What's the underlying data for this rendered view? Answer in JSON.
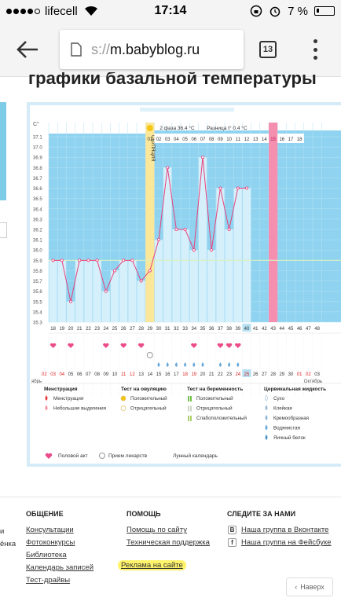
{
  "status": {
    "carrier": "lifecell",
    "time": "17:14",
    "battery": "7 %"
  },
  "browser": {
    "url_dim": "s://",
    "url_main": "m.babyblog.ru",
    "tabs_count": "13"
  },
  "heading": "графики базальной температуры",
  "chart": {
    "unit": "C°",
    "phase_text": "2 фаза 36.4 °C",
    "diff_text": "Разница t° 0.4 °C",
    "ovulation": "ОВУЛЯЦИЯ",
    "y_ticks": [
      "37.1",
      "37.0",
      "36.9",
      "36.8",
      "36.7",
      "36.6",
      "36.5",
      "36.4",
      "36.3",
      "36.2",
      "36.1",
      "36.0",
      "35.9",
      "35.8",
      "35.7",
      "35.6",
      "35.5",
      "35.4",
      "35.3"
    ],
    "cycle_days": [
      "01",
      "02",
      "03",
      "04",
      "05",
      "06",
      "07",
      "08",
      "09",
      "10",
      "11",
      "12",
      "13",
      "14",
      "15",
      "16",
      "17",
      "18"
    ],
    "highlight_day": "15",
    "bottom_days": [
      "18",
      "19",
      "20",
      "21",
      "22",
      "23",
      "24",
      "25",
      "26",
      "27",
      "28",
      "29",
      "30",
      "31",
      "32",
      "33",
      "34",
      "35",
      "36",
      "37",
      "38",
      "39",
      "40",
      "41",
      "42",
      "43",
      "44",
      "45",
      "46",
      "47",
      "48"
    ],
    "dates": [
      "02",
      "03",
      "04",
      "05",
      "06",
      "07",
      "08",
      "09",
      "10",
      "11",
      "12",
      "13",
      "14",
      "15",
      "16",
      "17",
      "18",
      "19",
      "20",
      "21",
      "22",
      "23",
      "24",
      "25",
      "26",
      "27",
      "28",
      "29",
      "30",
      "01",
      "02",
      "03"
    ],
    "month_left": "ябрь",
    "month_right": "Октябрь"
  },
  "chart_data": {
    "type": "line",
    "x": [
      18,
      19,
      20,
      21,
      22,
      23,
      24,
      25,
      26,
      27,
      28,
      29,
      30,
      31,
      32,
      33,
      34,
      35,
      36,
      37,
      38,
      39,
      40
    ],
    "values": [
      35.9,
      35.9,
      35.5,
      35.9,
      35.9,
      35.9,
      35.6,
      35.8,
      35.9,
      35.9,
      35.7,
      35.8,
      36.1,
      36.8,
      36.2,
      36.2,
      36.0,
      36.9,
      36.0,
      36.6,
      36.2,
      36.6,
      36.6
    ],
    "ylim": [
      35.3,
      37.1
    ],
    "ovulation_day": 29,
    "highlight_cycle_day": 15,
    "coverline": 35.9
  },
  "legend": {
    "col1_title": "Менструация",
    "col1_items": [
      "Менструация",
      "Небольшие выделения"
    ],
    "col2_title": "Тест на овуляцию",
    "col2_items": [
      "Положительный",
      "Отрицательный"
    ],
    "col3_title": "Тест на беременность",
    "col3_items": [
      "Положительный",
      "Отрицательный",
      "Слабоположительный"
    ],
    "col4_title": "Цервикальная жидкость",
    "col4_items": [
      "Сухо",
      "Клейкая",
      "Кремообразная",
      "Водянистая",
      "Яичный белок"
    ],
    "bottom": [
      "Половой акт",
      "Прием лекарств",
      "Лунный календарь"
    ]
  },
  "footer": {
    "col1_title": "ОБЩЕНИЕ",
    "col1_links": [
      "Консультации",
      "Фотоконкурсы",
      "Библиотека",
      "Календарь записей",
      "Тест-драйвы"
    ],
    "col2_title": "ПОМОЩЬ",
    "col2_links": [
      "Помощь по сайту",
      "Техническая поддержка",
      "Реклама на сайте"
    ],
    "col3_title": "СЛЕДИТЕ ЗА НАМИ",
    "col3_links": [
      "Наша группа в Вконтакте",
      "Наша группа на Фейсбуке"
    ],
    "edge_left": [
      "и",
      "ёнка"
    ],
    "back_top": "Наверх"
  },
  "colors": {
    "chart_bg": "#8fd3f0",
    "bar": "#d6f0fb",
    "line": "#e8417a",
    "ovulation": "#fbe79a",
    "pink_col": "#f48fb0"
  }
}
